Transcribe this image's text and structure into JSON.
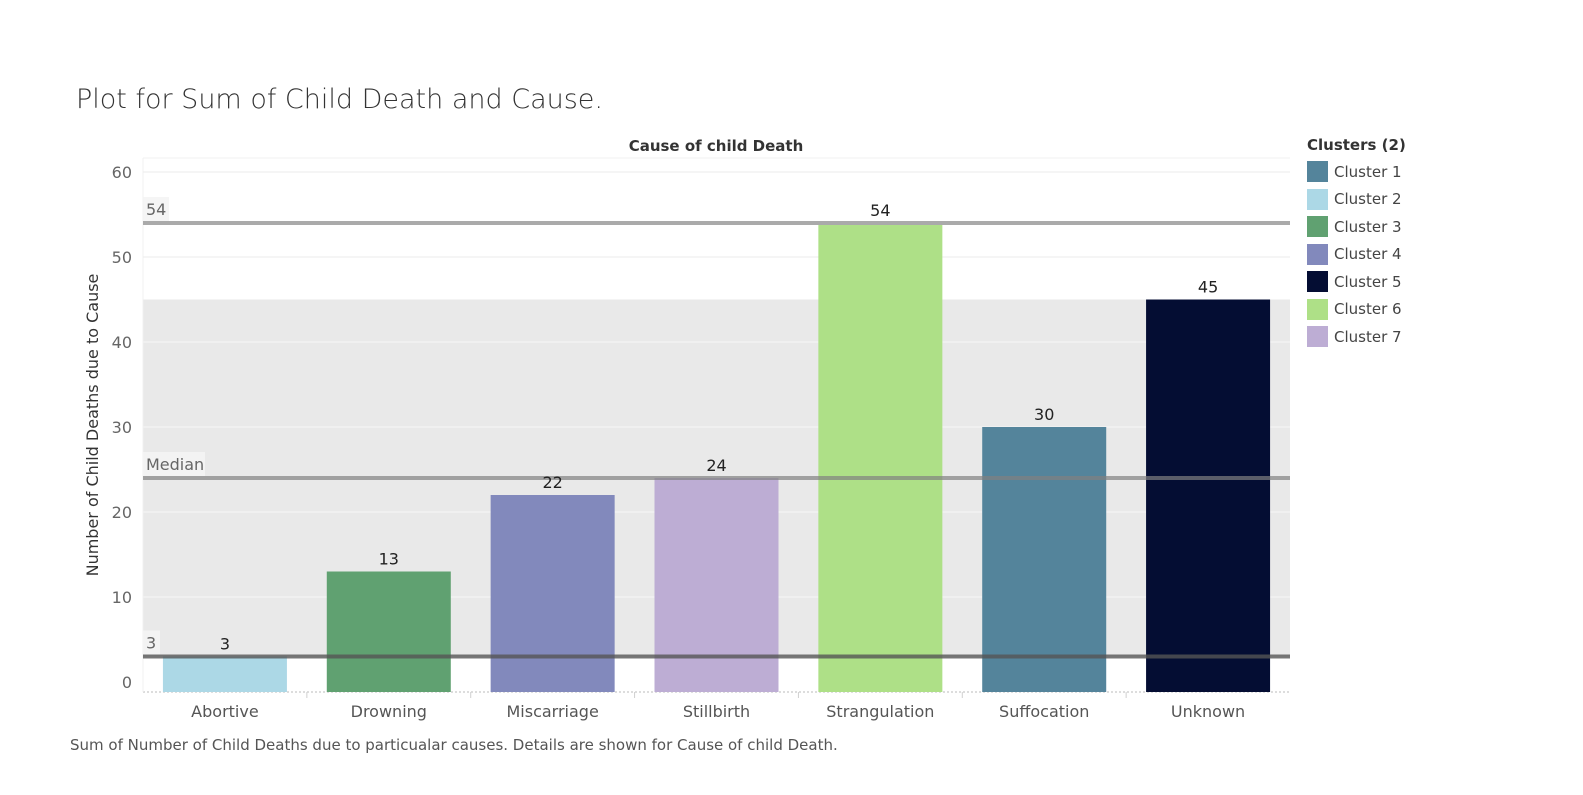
{
  "title": "Plot for Sum of Child Death and Cause.",
  "caption": "Sum of Number of Child Deaths due to particualar causes.  Details are shown for Cause  of child Death.",
  "legend": {
    "title": "Clusters (2)",
    "items": [
      {
        "label": "Cluster 1",
        "color": "#54849b"
      },
      {
        "label": "Cluster 2",
        "color": "#acd8e6"
      },
      {
        "label": "Cluster 3",
        "color": "#60a171"
      },
      {
        "label": "Cluster 4",
        "color": "#8289bc"
      },
      {
        "label": "Cluster 5",
        "color": "#040d33"
      },
      {
        "label": "Cluster 6",
        "color": "#aee087"
      },
      {
        "label": "Cluster 7",
        "color": "#bdadd4"
      }
    ]
  },
  "chart_data": {
    "type": "bar",
    "title": "Plot for Sum of Child Death and Cause.",
    "xlabel": "Cause  of child Death",
    "ylabel": "Number of Child Deaths due to Cause",
    "ylim": [
      0,
      60
    ],
    "yticks": [
      0,
      10,
      20,
      30,
      40,
      50,
      60
    ],
    "categories": [
      "Abortive",
      "Drowning",
      "Miscarriage",
      "Stillbirth",
      "Strangulation",
      "Suffocation",
      "Unknown"
    ],
    "values": [
      3,
      13,
      22,
      24,
      54,
      30,
      45
    ],
    "bar_colors": [
      "#acd8e6",
      "#60a171",
      "#8289bc",
      "#bdadd4",
      "#aee087",
      "#54849b",
      "#040d33"
    ],
    "reference_lines": [
      {
        "label": "54",
        "value": 54
      },
      {
        "label": "Median",
        "value": 24
      },
      {
        "label": "3",
        "value": 3
      }
    ],
    "reference_band": [
      3,
      45
    ],
    "grid": true,
    "legend_position": "right"
  }
}
